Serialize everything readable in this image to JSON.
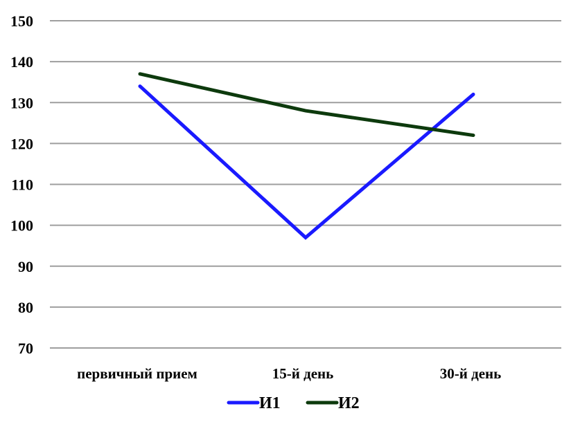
{
  "chart_data": {
    "type": "line",
    "categories": [
      "первичный прием",
      "15-й день",
      "30-й день"
    ],
    "series": [
      {
        "name": "И1",
        "values": [
          134,
          97,
          132
        ],
        "color": "#1a1aff"
      },
      {
        "name": "И2",
        "values": [
          137,
          128,
          122
        ],
        "color": "#0d3a0d"
      }
    ],
    "ylim": [
      70,
      150
    ],
    "yticks": [
      "70",
      "80",
      "90",
      "100",
      "110",
      "120",
      "130",
      "140",
      "150"
    ],
    "grid": true,
    "gridline_color": "#9e9e9e",
    "legend_position": "bottom"
  }
}
